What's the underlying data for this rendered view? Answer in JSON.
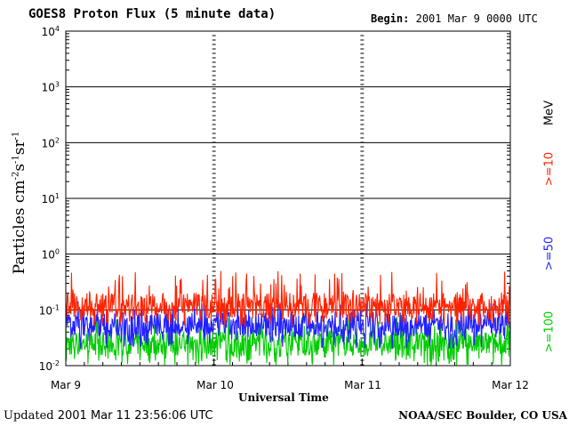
{
  "header": {
    "title": "GOES8 Proton Flux (5 minute data)",
    "begin_label": "Begin:",
    "begin_value": "2001 Mar 9 0000 UTC"
  },
  "footer": {
    "updated_label": "Updated",
    "updated_value": "2001 Mar 11 23:56:06 UTC",
    "source": "NOAA/SEC Boulder, CO USA"
  },
  "chart_data": {
    "type": "line",
    "title": "GOES8 Proton Flux (5 minute data)",
    "xlabel": "Universal Time",
    "ylabel_base": "Particles cm",
    "ylabel_units": [
      "-2",
      "s",
      "-1",
      "sr",
      "-1"
    ],
    "y_scale": "log",
    "ylim": [
      0.01,
      10000
    ],
    "y_ticks": [
      {
        "base": "10",
        "exp": "-2",
        "value": 0.01
      },
      {
        "base": "10",
        "exp": "-1",
        "value": 0.1
      },
      {
        "base": "10",
        "exp": "0",
        "value": 1
      },
      {
        "base": "10",
        "exp": "1",
        "value": 10
      },
      {
        "base": "10",
        "exp": "2",
        "value": 100
      },
      {
        "base": "10",
        "exp": "3",
        "value": 1000
      },
      {
        "base": "10",
        "exp": "4",
        "value": 10000
      }
    ],
    "x_ticks": [
      "Mar 9",
      "Mar 10",
      "Mar 11",
      "Mar 12"
    ],
    "xlim": [
      "2001-03-09T00:00Z",
      "2001-03-12T00:00Z"
    ],
    "grid": true,
    "energy_unit": "MeV",
    "series": [
      {
        "name": ">=10",
        "color": "#ff2200",
        "typical_flux": 0.12,
        "peak_flux": 0.5,
        "min_flux": 0.05
      },
      {
        "name": ">=50",
        "color": "#2222ff",
        "typical_flux": 0.055,
        "peak_flux": 0.15,
        "min_flux": 0.02
      },
      {
        "name": ">=100",
        "color": "#00cc00",
        "typical_flux": 0.025,
        "peak_flux": 0.09,
        "min_flux": 0.01
      }
    ]
  }
}
